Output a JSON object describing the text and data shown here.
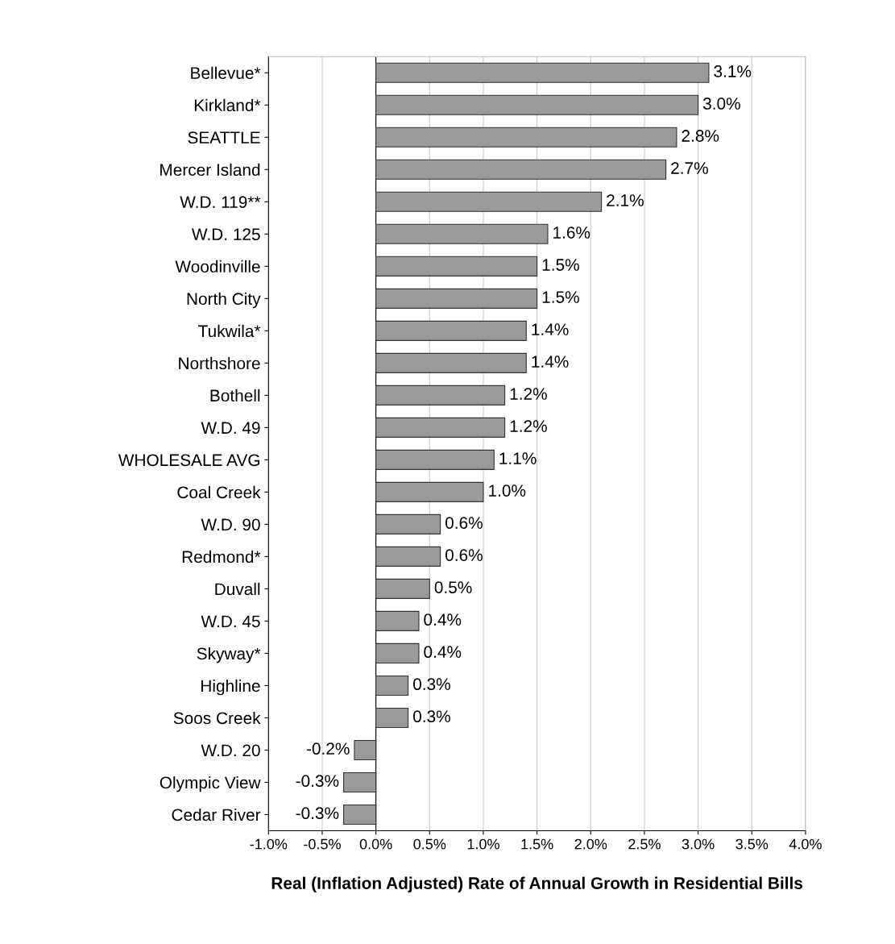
{
  "chart_data": {
    "type": "bar",
    "orientation": "horizontal",
    "xlabel": "Real (Inflation Adjusted) Rate of Annual Growth in Residential Bills",
    "categories": [
      "Bellevue*",
      "Kirkland*",
      "SEATTLE",
      "Mercer Island",
      "W.D. 119**",
      "W.D. 125",
      "Woodinville",
      "North City",
      "Tukwila*",
      "Northshore",
      "Bothell",
      "W.D. 49",
      "WHOLESALE AVG",
      "Coal Creek",
      "W.D. 90",
      "Redmond*",
      "Duvall",
      "W.D. 45",
      "Skyway*",
      "Highline",
      "Soos Creek",
      "W.D. 20",
      "Olympic View",
      "Cedar River"
    ],
    "values": [
      3.1,
      3.0,
      2.8,
      2.7,
      2.1,
      1.6,
      1.5,
      1.5,
      1.4,
      1.4,
      1.2,
      1.2,
      1.1,
      1.0,
      0.6,
      0.6,
      0.5,
      0.4,
      0.4,
      0.3,
      0.3,
      -0.2,
      -0.3,
      -0.3
    ],
    "value_labels": [
      "3.1%",
      "3.0%",
      "2.8%",
      "2.7%",
      "2.1%",
      "1.6%",
      "1.5%",
      "1.5%",
      "1.4%",
      "1.4%",
      "1.2%",
      "1.2%",
      "1.1%",
      "1.0%",
      "0.6%",
      "0.6%",
      "0.5%",
      "0.4%",
      "0.4%",
      "0.3%",
      "0.3%",
      "-0.2%",
      "-0.3%",
      "-0.3%"
    ],
    "color": "#9a9a9a",
    "xlim": [
      -1.0,
      4.0
    ],
    "xticks": [
      {
        "value": -1.0,
        "label": "-1.0%"
      },
      {
        "value": -0.5,
        "label": "-0.5%"
      },
      {
        "value": 0.0,
        "label": "0.0%"
      },
      {
        "value": 0.5,
        "label": "0.5%"
      },
      {
        "value": 1.0,
        "label": "1.0%"
      },
      {
        "value": 1.5,
        "label": "1.5%"
      },
      {
        "value": 2.0,
        "label": "2.0%"
      },
      {
        "value": 2.5,
        "label": "2.5%"
      },
      {
        "value": 3.0,
        "label": "3.0%"
      },
      {
        "value": 3.5,
        "label": "3.5%"
      },
      {
        "value": 4.0,
        "label": "4.0%"
      }
    ],
    "grid": "x",
    "legend": false
  }
}
